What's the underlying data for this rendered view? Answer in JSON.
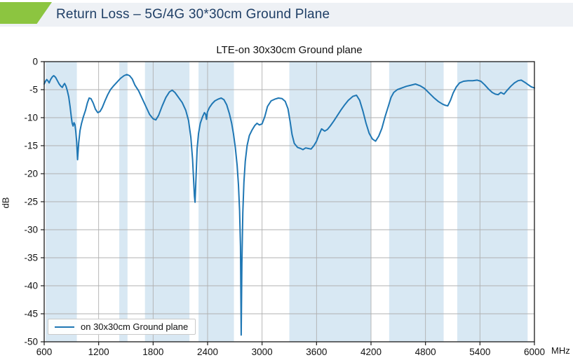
{
  "header": {
    "title": "Return Loss – 5G/4G 30*30cm Ground Plane"
  },
  "colors": {
    "header_band": "#eef1f5",
    "header_accent_green": "#8cc540",
    "header_text": "#1f3f66",
    "plot_background": "#ffffff",
    "band_highlight": "#d8e8f3",
    "grid": "#b0b0b0",
    "spine": "#1a1a1a",
    "line": "#1f77b4"
  },
  "chart_data": {
    "type": "line",
    "title": "LTE-on 30x30cm Ground plane",
    "xlabel": "",
    "ylabel": "dB",
    "x_unit_label": "MHz",
    "xlim": [
      600,
      6000
    ],
    "ylim": [
      -50,
      0
    ],
    "x_ticks": [
      600,
      1200,
      1800,
      2400,
      3000,
      3600,
      4200,
      4800,
      5400,
      6000
    ],
    "y_ticks": [
      0,
      -5,
      -10,
      -15,
      -20,
      -25,
      -30,
      -35,
      -40,
      -45,
      -50
    ],
    "grid": true,
    "legend_position": "lower-left",
    "highlight_bands_mhz": [
      [
        617,
        960
      ],
      [
        1427,
        1518
      ],
      [
        1710,
        2200
      ],
      [
        2300,
        2690
      ],
      [
        3300,
        4200
      ],
      [
        4400,
        5000
      ],
      [
        5150,
        5925
      ]
    ],
    "series": [
      {
        "name": "on 30x30cm Ground plane",
        "color": "#1f77b4",
        "points": [
          [
            600,
            -4.0
          ],
          [
            615,
            -3.5
          ],
          [
            628,
            -3.2
          ],
          [
            640,
            -3.4
          ],
          [
            655,
            -3.8
          ],
          [
            670,
            -3.2
          ],
          [
            690,
            -2.7
          ],
          [
            705,
            -2.5
          ],
          [
            725,
            -2.8
          ],
          [
            745,
            -3.4
          ],
          [
            765,
            -4.0
          ],
          [
            785,
            -4.4
          ],
          [
            800,
            -4.6
          ],
          [
            812,
            -4.2
          ],
          [
            825,
            -3.9
          ],
          [
            840,
            -4.4
          ],
          [
            855,
            -5.2
          ],
          [
            870,
            -6.3
          ],
          [
            885,
            -8.0
          ],
          [
            898,
            -9.8
          ],
          [
            908,
            -11.0
          ],
          [
            918,
            -11.5
          ],
          [
            928,
            -10.9
          ],
          [
            938,
            -11.2
          ],
          [
            948,
            -12.4
          ],
          [
            958,
            -14.3
          ],
          [
            968,
            -17.5
          ],
          [
            980,
            -14.5
          ],
          [
            995,
            -12.3
          ],
          [
            1010,
            -11.1
          ],
          [
            1030,
            -9.9
          ],
          [
            1055,
            -8.7
          ],
          [
            1075,
            -7.4
          ],
          [
            1095,
            -6.5
          ],
          [
            1115,
            -6.6
          ],
          [
            1140,
            -7.4
          ],
          [
            1165,
            -8.5
          ],
          [
            1190,
            -9.1
          ],
          [
            1215,
            -8.9
          ],
          [
            1240,
            -8.2
          ],
          [
            1270,
            -7.0
          ],
          [
            1300,
            -5.9
          ],
          [
            1330,
            -5.0
          ],
          [
            1360,
            -4.4
          ],
          [
            1400,
            -3.7
          ],
          [
            1440,
            -3.0
          ],
          [
            1480,
            -2.5
          ],
          [
            1510,
            -2.3
          ],
          [
            1540,
            -2.5
          ],
          [
            1570,
            -3.1
          ],
          [
            1600,
            -4.2
          ],
          [
            1640,
            -5.2
          ],
          [
            1680,
            -6.6
          ],
          [
            1720,
            -8.0
          ],
          [
            1760,
            -9.4
          ],
          [
            1800,
            -10.2
          ],
          [
            1830,
            -10.4
          ],
          [
            1860,
            -9.6
          ],
          [
            1900,
            -7.9
          ],
          [
            1940,
            -6.4
          ],
          [
            1980,
            -5.4
          ],
          [
            2010,
            -5.1
          ],
          [
            2040,
            -5.5
          ],
          [
            2080,
            -6.4
          ],
          [
            2120,
            -7.3
          ],
          [
            2160,
            -8.7
          ],
          [
            2190,
            -10.5
          ],
          [
            2215,
            -13.5
          ],
          [
            2235,
            -17.5
          ],
          [
            2255,
            -24.0
          ],
          [
            2262,
            -25.1
          ],
          [
            2272,
            -21.0
          ],
          [
            2285,
            -15.5
          ],
          [
            2300,
            -12.8
          ],
          [
            2320,
            -11.0
          ],
          [
            2345,
            -9.8
          ],
          [
            2365,
            -9.1
          ],
          [
            2378,
            -9.4
          ],
          [
            2388,
            -10.3
          ],
          [
            2398,
            -9.0
          ],
          [
            2420,
            -8.2
          ],
          [
            2450,
            -7.5
          ],
          [
            2480,
            -7.0
          ],
          [
            2515,
            -6.7
          ],
          [
            2550,
            -6.5
          ],
          [
            2580,
            -6.8
          ],
          [
            2610,
            -7.7
          ],
          [
            2640,
            -9.3
          ],
          [
            2665,
            -11.0
          ],
          [
            2685,
            -12.9
          ],
          [
            2705,
            -15.3
          ],
          [
            2725,
            -18.5
          ],
          [
            2740,
            -22.0
          ],
          [
            2752,
            -26.5
          ],
          [
            2762,
            -33.0
          ],
          [
            2770,
            -48.8
          ],
          [
            2778,
            -36.0
          ],
          [
            2788,
            -27.0
          ],
          [
            2800,
            -21.5
          ],
          [
            2815,
            -17.8
          ],
          [
            2835,
            -15.0
          ],
          [
            2860,
            -13.2
          ],
          [
            2890,
            -12.2
          ],
          [
            2920,
            -11.4
          ],
          [
            2945,
            -11.0
          ],
          [
            2970,
            -11.3
          ],
          [
            3000,
            -11.1
          ],
          [
            3030,
            -9.8
          ],
          [
            3060,
            -8.0
          ],
          [
            3100,
            -7.0
          ],
          [
            3140,
            -6.7
          ],
          [
            3180,
            -6.5
          ],
          [
            3220,
            -6.6
          ],
          [
            3255,
            -7.1
          ],
          [
            3285,
            -8.4
          ],
          [
            3310,
            -10.8
          ],
          [
            3330,
            -13.0
          ],
          [
            3355,
            -14.6
          ],
          [
            3390,
            -15.3
          ],
          [
            3425,
            -15.5
          ],
          [
            3450,
            -15.7
          ],
          [
            3480,
            -15.4
          ],
          [
            3510,
            -15.5
          ],
          [
            3540,
            -15.6
          ],
          [
            3570,
            -15.0
          ],
          [
            3600,
            -14.2
          ],
          [
            3625,
            -13.1
          ],
          [
            3655,
            -12.0
          ],
          [
            3690,
            -12.4
          ],
          [
            3720,
            -12.1
          ],
          [
            3750,
            -11.5
          ],
          [
            3790,
            -10.6
          ],
          [
            3830,
            -9.6
          ],
          [
            3870,
            -8.6
          ],
          [
            3910,
            -7.7
          ],
          [
            3950,
            -6.9
          ],
          [
            4000,
            -6.2
          ],
          [
            4040,
            -6.0
          ],
          [
            4075,
            -6.9
          ],
          [
            4110,
            -8.8
          ],
          [
            4145,
            -11.0
          ],
          [
            4180,
            -12.8
          ],
          [
            4215,
            -13.8
          ],
          [
            4250,
            -14.2
          ],
          [
            4285,
            -13.3
          ],
          [
            4320,
            -11.9
          ],
          [
            4355,
            -9.8
          ],
          [
            4390,
            -8.0
          ],
          [
            4420,
            -6.4
          ],
          [
            4450,
            -5.5
          ],
          [
            4490,
            -5.0
          ],
          [
            4540,
            -4.7
          ],
          [
            4590,
            -4.4
          ],
          [
            4640,
            -4.2
          ],
          [
            4690,
            -4.0
          ],
          [
            4740,
            -4.3
          ],
          [
            4790,
            -4.8
          ],
          [
            4840,
            -5.6
          ],
          [
            4890,
            -6.4
          ],
          [
            4940,
            -7.1
          ],
          [
            4990,
            -7.6
          ],
          [
            5020,
            -7.8
          ],
          [
            5045,
            -7.9
          ],
          [
            5075,
            -6.9
          ],
          [
            5105,
            -5.6
          ],
          [
            5140,
            -4.5
          ],
          [
            5175,
            -3.8
          ],
          [
            5220,
            -3.5
          ],
          [
            5270,
            -3.4
          ],
          [
            5320,
            -3.4
          ],
          [
            5370,
            -3.3
          ],
          [
            5410,
            -3.5
          ],
          [
            5450,
            -4.1
          ],
          [
            5495,
            -4.9
          ],
          [
            5535,
            -5.5
          ],
          [
            5570,
            -5.8
          ],
          [
            5600,
            -5.9
          ],
          [
            5630,
            -5.5
          ],
          [
            5665,
            -5.8
          ],
          [
            5700,
            -5.1
          ],
          [
            5740,
            -4.4
          ],
          [
            5780,
            -3.8
          ],
          [
            5820,
            -3.4
          ],
          [
            5855,
            -3.3
          ],
          [
            5895,
            -3.7
          ],
          [
            5930,
            -4.1
          ],
          [
            5965,
            -4.5
          ],
          [
            6000,
            -4.7
          ]
        ]
      }
    ]
  }
}
